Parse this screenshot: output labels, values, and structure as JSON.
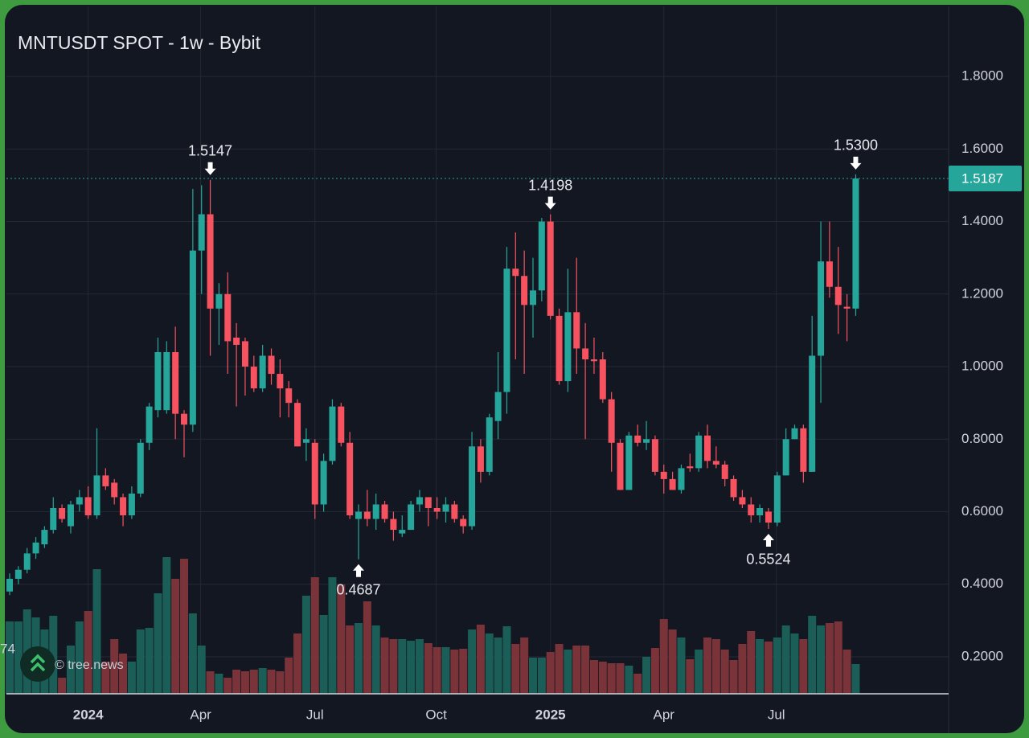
{
  "chart_data": {
    "type": "candlestick",
    "title": "MNTUSDT SPOT - 1w - Bybit",
    "watermark": "© tree.news",
    "cropped_label": "74",
    "up_color": "#26a69a",
    "down_color": "#f7525f",
    "volume_up_color": "#1a5e57",
    "volume_down_color": "#7a3338",
    "x": [
      0,
      1,
      2,
      3,
      4,
      5,
      6,
      7,
      8,
      9,
      10,
      11,
      12,
      13,
      14,
      15,
      16,
      17,
      18,
      19,
      20,
      21,
      22,
      23,
      24,
      25,
      26,
      27,
      28,
      29,
      30,
      31,
      32,
      33,
      34,
      35,
      36,
      37,
      38,
      39,
      40,
      41,
      42,
      43,
      44,
      45,
      46,
      47,
      48,
      49,
      50,
      51,
      52,
      53,
      54,
      55,
      56,
      57,
      58,
      59,
      60,
      61,
      62,
      63,
      64,
      65,
      66,
      67,
      68,
      69,
      70,
      71,
      72,
      73,
      74,
      75,
      76,
      77,
      78,
      79,
      80,
      81,
      82,
      83,
      84,
      85,
      86,
      87,
      88,
      89,
      90,
      91,
      92,
      93,
      94,
      95,
      96,
      97
    ],
    "open": [
      0.38,
      0.415,
      0.44,
      0.485,
      0.51,
      0.55,
      0.61,
      0.56,
      0.62,
      0.64,
      0.59,
      0.7,
      0.68,
      0.64,
      0.59,
      0.65,
      0.79,
      0.88,
      0.88,
      1.04,
      0.87,
      0.84,
      1.32,
      1.42,
      1.16,
      1.2,
      1.08,
      1.07,
      1.0,
      0.94,
      1.03,
      0.98,
      0.94,
      0.9,
      0.79,
      0.79,
      0.62,
      0.74,
      0.89,
      0.79,
      0.58,
      0.6,
      0.58,
      0.62,
      0.58,
      0.54,
      0.55,
      0.62,
      0.64,
      0.61,
      0.6,
      0.62,
      0.58,
      0.56,
      0.78,
      0.71,
      0.85,
      0.93,
      1.27,
      1.25,
      1.17,
      1.21,
      1.4,
      1.14,
      0.96,
      1.15,
      1.05,
      1.02,
      1.02,
      0.91,
      0.79,
      0.66,
      0.81,
      0.79,
      0.8,
      0.71,
      0.69,
      0.66,
      0.725,
      0.72,
      0.81,
      0.74,
      0.73,
      0.69,
      0.64,
      0.62,
      0.59,
      0.6,
      0.57,
      0.7,
      0.8,
      0.83,
      0.71,
      1.03,
      1.29,
      1.22,
      1.165,
      1.16
    ],
    "high": [
      0.43,
      0.45,
      0.5,
      0.53,
      0.56,
      0.64,
      0.62,
      0.63,
      0.66,
      0.67,
      0.83,
      0.72,
      0.69,
      0.65,
      0.67,
      0.8,
      0.9,
      1.08,
      1.07,
      1.11,
      0.88,
      1.49,
      1.5,
      1.5147,
      1.23,
      1.26,
      1.12,
      1.08,
      1.03,
      1.06,
      1.05,
      1.02,
      0.96,
      0.91,
      0.83,
      0.8,
      0.76,
      0.91,
      0.9,
      0.82,
      0.62,
      0.66,
      0.65,
      0.63,
      0.6,
      0.59,
      0.63,
      0.66,
      0.64,
      0.64,
      0.64,
      0.63,
      0.59,
      0.82,
      0.8,
      0.87,
      1.04,
      1.33,
      1.37,
      1.32,
      1.3,
      1.41,
      1.4198,
      1.16,
      1.27,
      1.3,
      1.12,
      1.08,
      1.04,
      0.93,
      0.8,
      0.82,
      0.84,
      0.85,
      0.81,
      0.73,
      0.71,
      0.73,
      0.76,
      0.82,
      0.84,
      0.78,
      0.74,
      0.7,
      0.66,
      0.64,
      0.62,
      0.61,
      0.71,
      0.83,
      0.84,
      0.84,
      1.14,
      1.4,
      1.4,
      1.33,
      1.2,
      1.53
    ],
    "low": [
      0.37,
      0.4,
      0.43,
      0.47,
      0.5,
      0.54,
      0.57,
      0.54,
      0.6,
      0.58,
      0.58,
      0.66,
      0.62,
      0.56,
      0.58,
      0.64,
      0.77,
      0.86,
      0.87,
      0.8,
      0.75,
      0.82,
      1.2,
      1.03,
      1.06,
      0.98,
      0.89,
      0.92,
      0.93,
      0.93,
      0.95,
      0.86,
      0.86,
      0.78,
      0.74,
      0.58,
      0.6,
      0.73,
      0.78,
      0.58,
      0.4687,
      0.56,
      0.55,
      0.57,
      0.52,
      0.53,
      0.55,
      0.6,
      0.56,
      0.58,
      0.57,
      0.57,
      0.54,
      0.55,
      0.68,
      0.7,
      0.8,
      0.87,
      1.02,
      0.98,
      1.08,
      1.18,
      1.13,
      0.95,
      0.93,
      0.98,
      0.8,
      0.98,
      0.9,
      0.71,
      0.66,
      0.66,
      0.78,
      0.77,
      0.7,
      0.65,
      0.66,
      0.65,
      0.71,
      0.71,
      0.72,
      0.72,
      0.67,
      0.63,
      0.61,
      0.57,
      0.57,
      0.5524,
      0.56,
      0.7,
      0.8,
      0.68,
      0.71,
      0.9,
      1.19,
      1.09,
      1.07,
      1.14
    ],
    "close": [
      0.415,
      0.44,
      0.485,
      0.515,
      0.55,
      0.61,
      0.58,
      0.62,
      0.64,
      0.59,
      0.7,
      0.67,
      0.64,
      0.59,
      0.65,
      0.79,
      0.89,
      1.04,
      1.04,
      0.87,
      0.84,
      1.32,
      1.42,
      1.16,
      1.2,
      1.07,
      1.06,
      1.0,
      0.94,
      1.03,
      0.98,
      0.94,
      0.9,
      0.78,
      0.8,
      0.62,
      0.74,
      0.89,
      0.79,
      0.59,
      0.6,
      0.58,
      0.62,
      0.58,
      0.55,
      0.55,
      0.62,
      0.64,
      0.61,
      0.6,
      0.62,
      0.58,
      0.56,
      0.78,
      0.71,
      0.86,
      0.93,
      1.27,
      1.25,
      1.17,
      1.21,
      1.4,
      1.14,
      0.96,
      1.15,
      1.05,
      1.02,
      1.015,
      0.91,
      0.79,
      0.66,
      0.81,
      0.79,
      0.8,
      0.71,
      0.69,
      0.66,
      0.72,
      0.72,
      0.81,
      0.74,
      0.73,
      0.69,
      0.64,
      0.62,
      0.59,
      0.61,
      0.57,
      0.7,
      0.8,
      0.83,
      0.71,
      1.03,
      1.29,
      1.22,
      1.17,
      1.16,
      1.5187
    ],
    "volume": [
      9.0,
      9.0,
      10.5,
      9.5,
      8.0,
      9.7,
      2.0,
      6.0,
      9.0,
      10.3,
      15.5,
      4.0,
      6.8,
      5.0,
      4.0,
      8.0,
      8.2,
      12.5,
      17.0,
      14.3,
      16.8,
      10.0,
      6.0,
      2.8,
      2.5,
      2.0,
      3.0,
      2.8,
      3.0,
      3.2,
      3.0,
      2.8,
      4.5,
      7.5,
      12.2,
      14.5,
      9.8,
      14.5,
      13.6,
      8.5,
      8.8,
      11.5,
      8.5,
      7.0,
      6.8,
      6.8,
      6.6,
      6.8,
      6.3,
      5.8,
      5.8,
      5.5,
      5.6,
      8.0,
      8.6,
      7.5,
      7.0,
      8.4,
      6.2,
      7.0,
      4.5,
      4.5,
      5.2,
      6.2,
      5.5,
      6.0,
      6.0,
      4.2,
      4.0,
      3.8,
      3.8,
      3.5,
      2.5,
      4.6,
      5.7,
      9.3,
      8.0,
      7.0,
      4.3,
      5.5,
      7.0,
      6.8,
      5.5,
      4.2,
      6.2,
      7.8,
      6.8,
      6.5,
      7.0,
      8.5,
      7.5,
      6.8,
      9.7,
      8.5,
      8.8,
      9.0,
      5.5,
      3.7
    ],
    "xlim": [
      -0.37,
      107.65
    ],
    "xticks": [
      {
        "value": 9.0,
        "label": "2024"
      },
      {
        "value": 21.9,
        "label": "Apr"
      },
      {
        "value": 35.0,
        "label": "Jul"
      },
      {
        "value": 48.9,
        "label": "Oct"
      },
      {
        "value": 62.0,
        "label": "2025"
      },
      {
        "value": 75.0,
        "label": "Apr"
      },
      {
        "value": 87.9,
        "label": "Jul"
      }
    ],
    "ylim": [
      0.098,
      1.993
    ],
    "yticks": [
      {
        "value": 0.2,
        "label": "0.2000"
      },
      {
        "value": 0.4,
        "label": "0.4000"
      },
      {
        "value": 0.6,
        "label": "0.6000"
      },
      {
        "value": 0.8,
        "label": "0.8000"
      },
      {
        "value": 1.0,
        "label": "1.0000"
      },
      {
        "value": 1.2,
        "label": "1.2000"
      },
      {
        "value": 1.4,
        "label": "1.4000"
      },
      {
        "value": 1.6,
        "label": "1.6000"
      },
      {
        "value": 1.8,
        "label": "1.8000"
      }
    ],
    "grid": true,
    "annotations": [
      {
        "x": 23,
        "kind": "high",
        "value": 1.5147,
        "label": "1.5147"
      },
      {
        "x": 40,
        "kind": "low",
        "value": 0.4687,
        "label": "0.4687"
      },
      {
        "x": 62,
        "kind": "high",
        "value": 1.4198,
        "label": "1.4198"
      },
      {
        "x": 87,
        "kind": "low",
        "value": 0.5524,
        "label": "0.5524"
      },
      {
        "x": 97,
        "kind": "high",
        "value": 1.53,
        "label": "1.5300"
      }
    ]
  }
}
